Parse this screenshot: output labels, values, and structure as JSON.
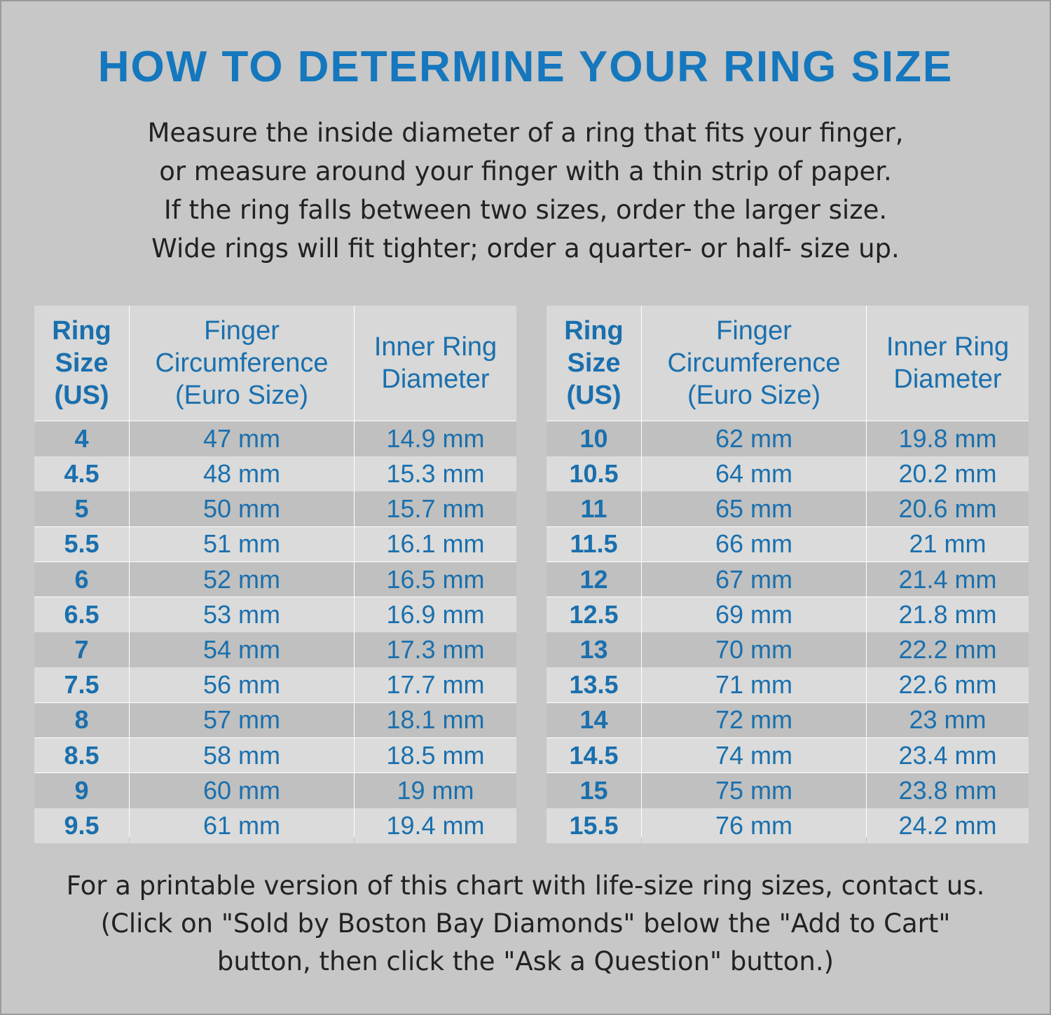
{
  "header": {
    "title": "HOW TO DETERMINE YOUR RING SIZE",
    "intro": [
      "Measure the inside diameter of a ring that fits your finger,",
      "or measure around your finger with a thin strip of paper.",
      "If the ring falls between two sizes, order the larger size.",
      "Wide rings will fit tighter; order a quarter- or half- size up."
    ]
  },
  "tables": [
    {
      "headers": [
        [
          "Ring",
          "Size",
          "(US)"
        ],
        [
          "Finger",
          "Circumference",
          "(Euro Size)"
        ],
        [
          "Inner Ring",
          "Diameter"
        ]
      ],
      "rows": [
        [
          "4",
          "47 mm",
          "14.9 mm"
        ],
        [
          "4.5",
          "48 mm",
          "15.3 mm"
        ],
        [
          "5",
          "50 mm",
          "15.7 mm"
        ],
        [
          "5.5",
          "51 mm",
          "16.1 mm"
        ],
        [
          "6",
          "52 mm",
          "16.5 mm"
        ],
        [
          "6.5",
          "53 mm",
          "16.9 mm"
        ],
        [
          "7",
          "54 mm",
          "17.3 mm"
        ],
        [
          "7.5",
          "56 mm",
          "17.7 mm"
        ],
        [
          "8",
          "57 mm",
          "18.1 mm"
        ],
        [
          "8.5",
          "58 mm",
          "18.5 mm"
        ],
        [
          "9",
          "60 mm",
          "19 mm"
        ],
        [
          "9.5",
          "61 mm",
          "19.4 mm"
        ]
      ]
    },
    {
      "headers": [
        [
          "Ring",
          "Size",
          "(US)"
        ],
        [
          "Finger",
          "Circumference",
          "(Euro Size)"
        ],
        [
          "Inner Ring",
          "Diameter"
        ]
      ],
      "rows": [
        [
          "10",
          "62 mm",
          "19.8 mm"
        ],
        [
          "10.5",
          "64 mm",
          "20.2 mm"
        ],
        [
          "11",
          "65 mm",
          "20.6 mm"
        ],
        [
          "11.5",
          "66 mm",
          "21 mm"
        ],
        [
          "12",
          "67 mm",
          "21.4 mm"
        ],
        [
          "12.5",
          "69 mm",
          "21.8 mm"
        ],
        [
          "13",
          "70 mm",
          "22.2 mm"
        ],
        [
          "13.5",
          "71 mm",
          "22.6 mm"
        ],
        [
          "14",
          "72 mm",
          "23 mm"
        ],
        [
          "14.5",
          "74 mm",
          "23.4 mm"
        ],
        [
          "15",
          "75 mm",
          "23.8 mm"
        ],
        [
          "15.5",
          "76 mm",
          "24.2 mm"
        ]
      ]
    }
  ],
  "footer": [
    "For a printable version of this chart with life-size ring sizes, contact us.",
    "(Click on \"Sold by Boston Bay Diamonds\" below the \"Add to Cart\"",
    "button, then click the \"Ask a Question\" button.)"
  ]
}
